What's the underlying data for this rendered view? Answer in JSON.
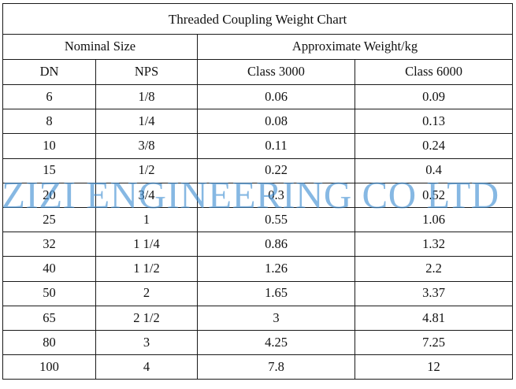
{
  "table": {
    "title": "Threaded Coupling Weight Chart",
    "group_headers": {
      "nominal_size": "Nominal Size",
      "approx_weight": "Approximate Weight/kg"
    },
    "column_headers": [
      "DN",
      "NPS",
      "Class 3000",
      "Class 6000"
    ],
    "rows": [
      [
        "6",
        "1/8",
        "0.06",
        "0.09"
      ],
      [
        "8",
        "1/4",
        "0.08",
        "0.13"
      ],
      [
        "10",
        "3/8",
        "0.11",
        "0.24"
      ],
      [
        "15",
        "1/2",
        "0.22",
        "0.4"
      ],
      [
        "20",
        "3/4",
        "0.3",
        "0.52"
      ],
      [
        "25",
        "1",
        "0.55",
        "1.06"
      ],
      [
        "32",
        "1 1/4",
        "0.86",
        "1.32"
      ],
      [
        "40",
        "1 1/2",
        "1.26",
        "2.2"
      ],
      [
        "50",
        "2",
        "1.65",
        "3.37"
      ],
      [
        "65",
        "2 1/2",
        "3",
        "4.81"
      ],
      [
        "80",
        "3",
        "4.25",
        "7.25"
      ],
      [
        "100",
        "4",
        "7.8",
        "12"
      ]
    ]
  },
  "watermark": {
    "text": "ZIZI ENGINEERING CO LTD",
    "color": "#3c8cd2"
  }
}
